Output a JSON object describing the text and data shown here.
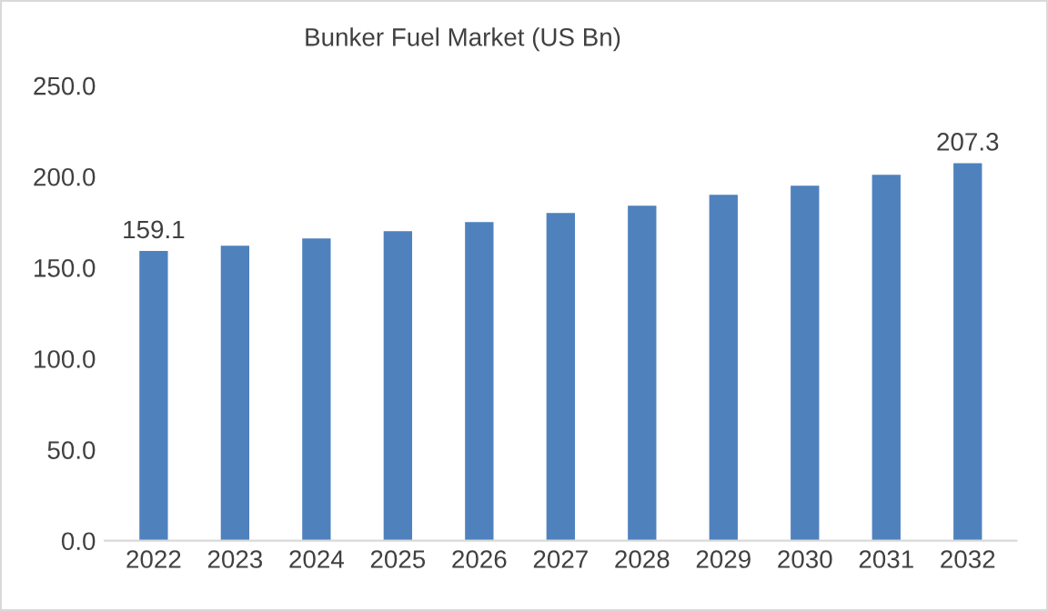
{
  "chart_data": {
    "type": "bar",
    "title": "Bunker Fuel Market (US Bn)",
    "categories": [
      "2022",
      "2023",
      "2024",
      "2025",
      "2026",
      "2027",
      "2028",
      "2029",
      "2030",
      "2031",
      "2032"
    ],
    "values": [
      159.1,
      162,
      166,
      170,
      175,
      180,
      184,
      190,
      195,
      201,
      207.3
    ],
    "value_labels": [
      "159.1",
      null,
      null,
      null,
      null,
      null,
      null,
      null,
      null,
      null,
      "207.3"
    ],
    "color": "#4f81bd",
    "ylim": [
      0,
      250
    ],
    "yticks": [
      {
        "value": 0,
        "label": "0.0"
      },
      {
        "value": 50,
        "label": "50.0"
      },
      {
        "value": 100,
        "label": "100.0"
      },
      {
        "value": 150,
        "label": "150.0"
      },
      {
        "value": 200,
        "label": "200.0"
      },
      {
        "value": 250,
        "label": "250.0"
      }
    ],
    "grid": false,
    "legend": false
  }
}
